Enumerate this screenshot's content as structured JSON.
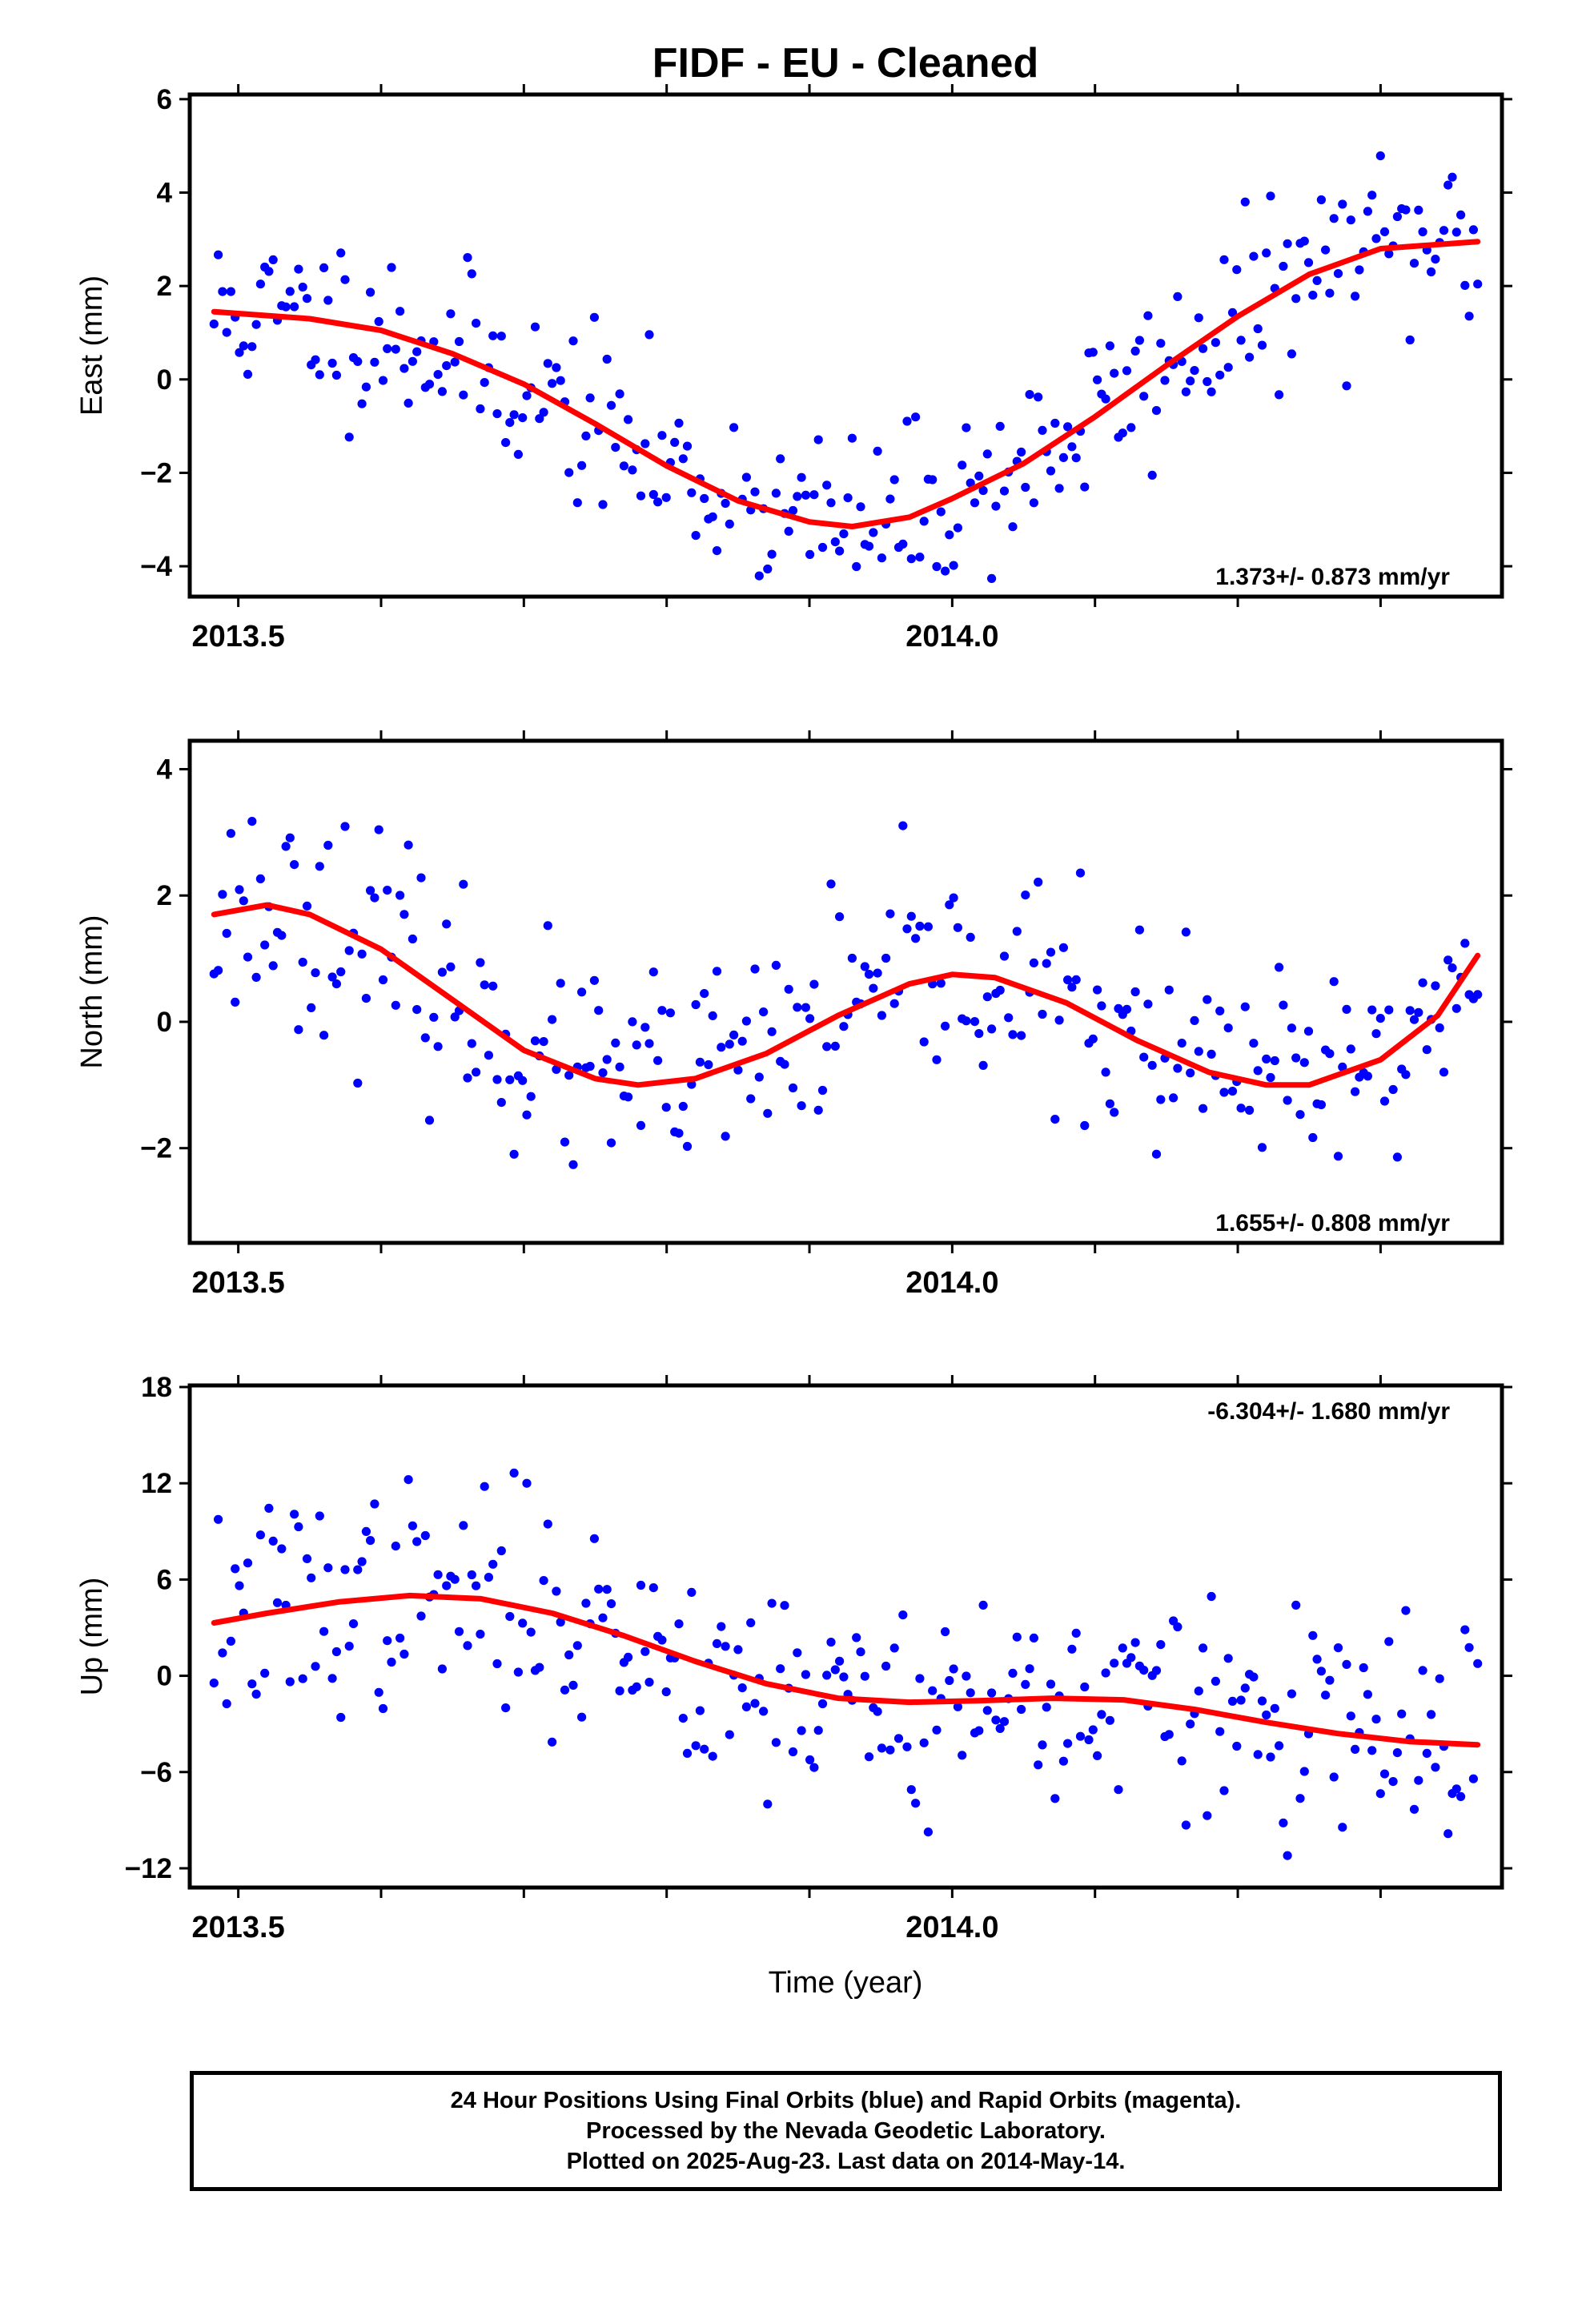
{
  "title": "FIDF  - EU - Cleaned",
  "xlabel": "Time (year)",
  "colors": {
    "points": "#0000ff",
    "fit": "#ff0000",
    "frame": "#000000"
  },
  "footer": {
    "line1": "24 Hour Positions Using Final Orbits (blue) and Rapid Orbits (magenta).",
    "line2": "Processed by the Nevada Geodetic Laboratory.",
    "line3": "Plotted on 2025-Aug-23. Last data on 2014-May-14."
  },
  "chart_data": [
    {
      "type": "scatter",
      "ylabel": "East (mm)",
      "rate_label": "1.373+/- 0.873 mm/yr",
      "rate_position": "bottom-right",
      "xlim": [
        2013.466,
        2014.385
      ],
      "ylim": [
        -4.65,
        6.1
      ],
      "x_ticks": [
        2013.5,
        2014.0
      ],
      "x_tick_labels": [
        "2013.5",
        "2014.0"
      ],
      "x_minor_ticks": [
        2013.6,
        2013.7,
        2013.8,
        2013.9,
        2014.1,
        2014.2,
        2014.3
      ],
      "y_ticks": [
        -4,
        -2,
        0,
        2,
        4,
        6
      ],
      "y_tick_labels": [
        "−4",
        "−2",
        "0",
        "2",
        "4",
        "6"
      ],
      "series": [
        {
          "kind": "points",
          "color": "#0000ff",
          "x_start": 2013.483,
          "x_end": 2014.368,
          "count": 300,
          "seed": 11,
          "noise_sd": 0.95
        },
        {
          "kind": "fit",
          "color": "#ff0000",
          "points": [
            [
              2013.483,
              1.45
            ],
            [
              2013.55,
              1.3
            ],
            [
              2013.6,
              1.05
            ],
            [
              2013.65,
              0.55
            ],
            [
              2013.7,
              -0.1
            ],
            [
              2013.75,
              -0.95
            ],
            [
              2013.8,
              -1.85
            ],
            [
              2013.85,
              -2.6
            ],
            [
              2013.9,
              -3.05
            ],
            [
              2013.93,
              -3.15
            ],
            [
              2013.97,
              -2.95
            ],
            [
              2014.0,
              -2.55
            ],
            [
              2014.05,
              -1.8
            ],
            [
              2014.1,
              -0.8
            ],
            [
              2014.15,
              0.3
            ],
            [
              2014.2,
              1.35
            ],
            [
              2014.25,
              2.25
            ],
            [
              2014.3,
              2.8
            ],
            [
              2014.368,
              2.95
            ]
          ]
        }
      ]
    },
    {
      "type": "scatter",
      "ylabel": "North (mm)",
      "rate_label": "1.655+/- 0.808 mm/yr",
      "rate_position": "bottom-right",
      "xlim": [
        2013.466,
        2014.385
      ],
      "ylim": [
        -3.5,
        4.45
      ],
      "x_ticks": [
        2013.5,
        2014.0
      ],
      "x_tick_labels": [
        "2013.5",
        "2014.0"
      ],
      "x_minor_ticks": [
        2013.6,
        2013.7,
        2013.8,
        2013.9,
        2014.1,
        2014.2,
        2014.3
      ],
      "y_ticks": [
        -2,
        0,
        2,
        4
      ],
      "y_tick_labels": [
        "−2",
        "0",
        "2",
        "4"
      ],
      "series": [
        {
          "kind": "points",
          "color": "#0000ff",
          "x_start": 2013.483,
          "x_end": 2014.368,
          "count": 300,
          "seed": 23,
          "noise_sd": 0.85
        },
        {
          "kind": "fit",
          "color": "#ff0000",
          "points": [
            [
              2013.483,
              1.7
            ],
            [
              2013.52,
              1.85
            ],
            [
              2013.55,
              1.7
            ],
            [
              2013.6,
              1.15
            ],
            [
              2013.65,
              0.35
            ],
            [
              2013.7,
              -0.45
            ],
            [
              2013.75,
              -0.9
            ],
            [
              2013.78,
              -1.0
            ],
            [
              2013.82,
              -0.9
            ],
            [
              2013.87,
              -0.5
            ],
            [
              2013.92,
              0.1
            ],
            [
              2013.97,
              0.6
            ],
            [
              2014.0,
              0.75
            ],
            [
              2014.03,
              0.7
            ],
            [
              2014.08,
              0.3
            ],
            [
              2014.13,
              -0.3
            ],
            [
              2014.18,
              -0.8
            ],
            [
              2014.22,
              -1.0
            ],
            [
              2014.25,
              -1.0
            ],
            [
              2014.3,
              -0.6
            ],
            [
              2014.34,
              0.1
            ],
            [
              2014.368,
              1.05
            ]
          ]
        }
      ]
    },
    {
      "type": "scatter",
      "ylabel": "Up (mm)",
      "rate_label": "-6.304+/- 1.680 mm/yr",
      "rate_position": "top-right",
      "xlim": [
        2013.466,
        2014.385
      ],
      "ylim": [
        -13.2,
        18.1
      ],
      "x_ticks": [
        2013.5,
        2014.0
      ],
      "x_tick_labels": [
        "2013.5",
        "2014.0"
      ],
      "x_minor_ticks": [
        2013.6,
        2013.7,
        2013.8,
        2013.9,
        2014.1,
        2014.2,
        2014.3
      ],
      "y_ticks": [
        -12,
        -6,
        0,
        6,
        12,
        18
      ],
      "y_tick_labels": [
        "−12",
        "−6",
        "0",
        "6",
        "12",
        "18"
      ],
      "series": [
        {
          "kind": "points",
          "color": "#0000ff",
          "x_start": 2013.483,
          "x_end": 2014.368,
          "count": 300,
          "seed": 37,
          "noise_sd": 3.4
        },
        {
          "kind": "fit",
          "color": "#ff0000",
          "points": [
            [
              2013.483,
              3.3
            ],
            [
              2013.52,
              3.9
            ],
            [
              2013.57,
              4.6
            ],
            [
              2013.62,
              5.0
            ],
            [
              2013.67,
              4.8
            ],
            [
              2013.72,
              3.9
            ],
            [
              2013.77,
              2.5
            ],
            [
              2013.82,
              0.9
            ],
            [
              2013.87,
              -0.5
            ],
            [
              2013.92,
              -1.4
            ],
            [
              2013.97,
              -1.65
            ],
            [
              2014.02,
              -1.55
            ],
            [
              2014.07,
              -1.4
            ],
            [
              2014.12,
              -1.5
            ],
            [
              2014.17,
              -2.1
            ],
            [
              2014.22,
              -2.9
            ],
            [
              2014.27,
              -3.6
            ],
            [
              2014.32,
              -4.1
            ],
            [
              2014.368,
              -4.3
            ]
          ]
        }
      ]
    }
  ]
}
